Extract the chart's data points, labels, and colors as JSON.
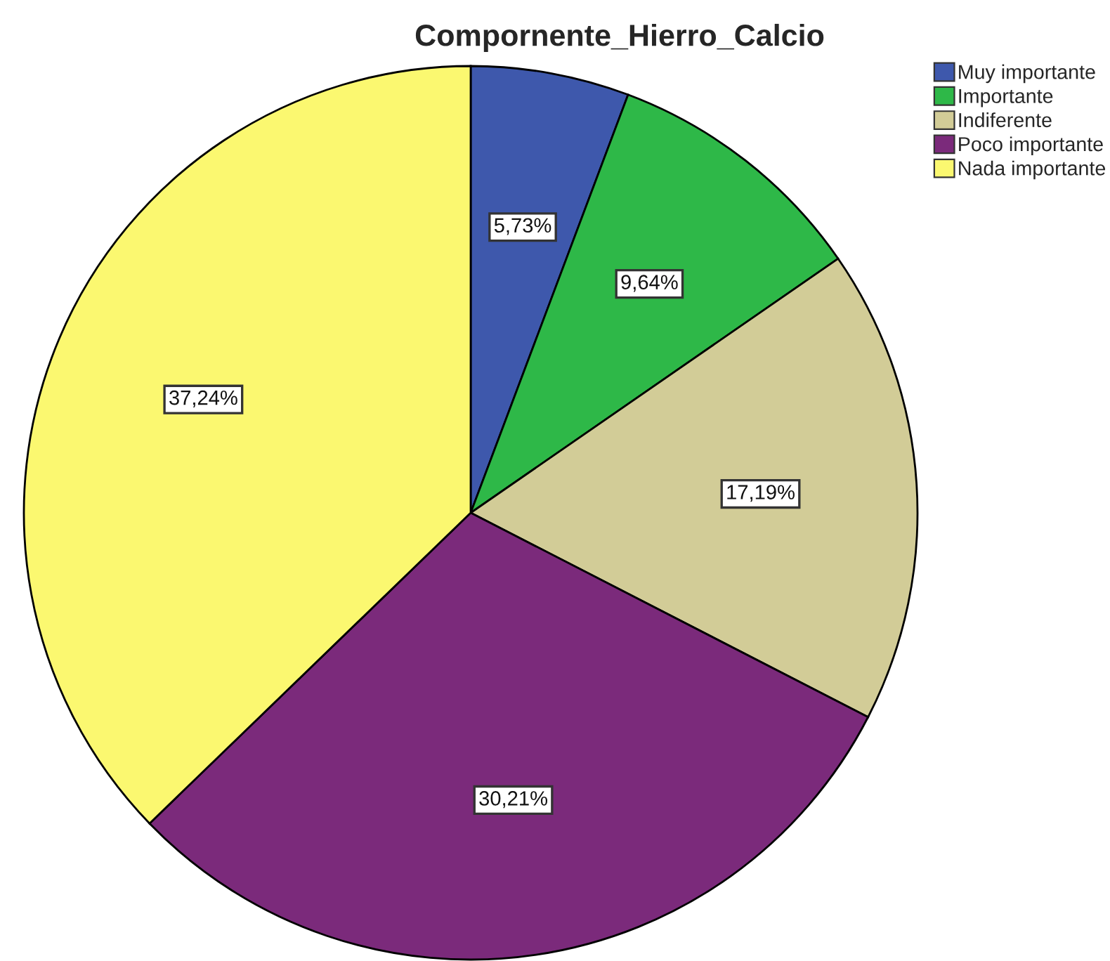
{
  "chart_data": {
    "type": "pie",
    "title": "Compornente_Hierro_Calcio",
    "categories": [
      "Muy importante",
      "Importante",
      "Indiferente",
      "Poco importante",
      "Nada importante"
    ],
    "values": [
      5.73,
      9.64,
      17.19,
      30.21,
      37.24
    ],
    "value_labels": [
      "5,73%",
      "9,64%",
      "17,19%",
      "30,21%",
      "37,24%"
    ],
    "colors": [
      "#3e58ac",
      "#2eb848",
      "#d2cc97",
      "#7b2a7b",
      "#fbf870"
    ],
    "legend": "top right"
  }
}
